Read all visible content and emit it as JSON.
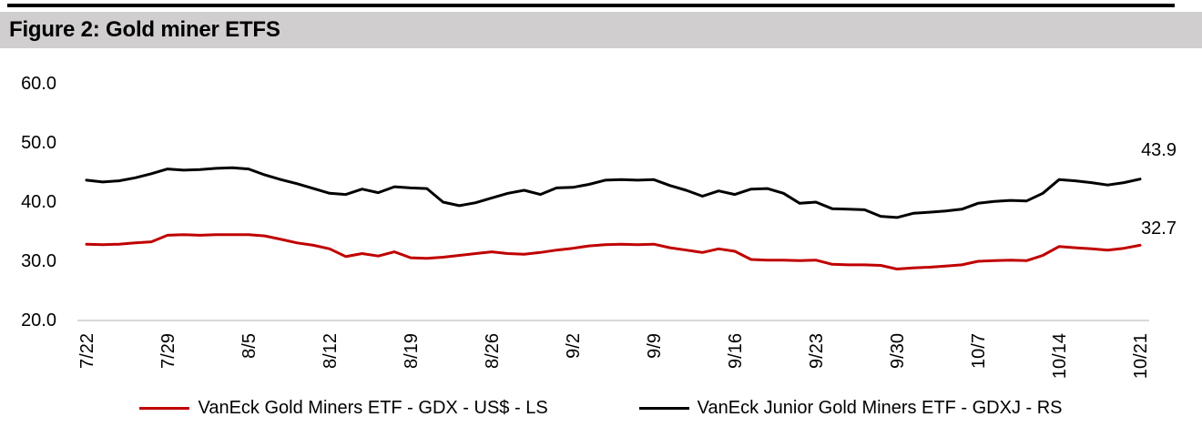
{
  "figure": {
    "title": "Figure 2: Gold miner ETFS"
  },
  "colors": {
    "accent_red": "#c00000",
    "line_black": "#000000",
    "title_bar_bg": "#d0cece",
    "baseline_gray": "#d9d9d9",
    "top_rule_black": "#000000",
    "text": "#000000"
  },
  "chart_data": {
    "type": "line",
    "title": "Figure 2: Gold miner ETFS",
    "xlabel": "",
    "ylabel": "",
    "ylim": [
      20,
      60
    ],
    "y_tick_labels": [
      "60.0",
      "50.0",
      "40.0",
      "30.0",
      "20.0"
    ],
    "y_ticks": [
      60,
      50,
      40,
      30,
      20
    ],
    "x_tick_labels": [
      "7/22",
      "7/29",
      "8/5",
      "8/12",
      "8/19",
      "8/26",
      "9/2",
      "9/9",
      "9/16",
      "9/23",
      "9/30",
      "10/7",
      "10/14",
      "10/21"
    ],
    "points_per_tick": 5,
    "grid": "off (single light-gray baseline at y=20 only)",
    "legend_position": "bottom-center",
    "series": [
      {
        "name": "VanEck Gold Miners ETF  - GDX  - US$ - LS",
        "color": "#c00000",
        "axis": "LS",
        "end_label": "32.7",
        "values": [
          32.9,
          32.8,
          32.9,
          33.1,
          33.3,
          34.4,
          34.5,
          34.4,
          34.5,
          34.5,
          34.5,
          34.3,
          33.7,
          33.1,
          32.7,
          32.1,
          30.8,
          31.3,
          30.9,
          31.6,
          30.6,
          30.5,
          30.7,
          31.0,
          31.3,
          31.6,
          31.3,
          31.2,
          31.5,
          31.9,
          32.2,
          32.6,
          32.8,
          32.9,
          32.8,
          32.9,
          32.3,
          31.9,
          31.5,
          32.1,
          31.7,
          30.3,
          30.2,
          30.2,
          30.1,
          30.2,
          29.5,
          29.4,
          29.4,
          29.3,
          28.7,
          28.9,
          29.0,
          29.2,
          29.4,
          30.0,
          30.1,
          30.2,
          30.1,
          31.0,
          32.5,
          32.3,
          32.1,
          31.9,
          32.2,
          32.7
        ]
      },
      {
        "name": "VanEck Junior Gold Miners ETF - GDXJ - RS",
        "color": "#000000",
        "axis": "RS",
        "end_label": "43.9",
        "values": [
          43.7,
          43.4,
          43.6,
          44.1,
          44.8,
          45.6,
          45.4,
          45.5,
          45.7,
          45.8,
          45.6,
          44.6,
          43.8,
          43.1,
          42.3,
          41.5,
          41.3,
          42.2,
          41.6,
          42.6,
          42.4,
          42.3,
          40.0,
          39.4,
          39.9,
          40.7,
          41.5,
          42.0,
          41.3,
          42.4,
          42.5,
          43.0,
          43.7,
          43.8,
          43.7,
          43.8,
          42.8,
          42.0,
          41.0,
          41.9,
          41.3,
          42.2,
          42.3,
          41.5,
          39.8,
          40.0,
          38.9,
          38.8,
          38.7,
          37.6,
          37.4,
          38.1,
          38.3,
          38.5,
          38.8,
          39.8,
          40.1,
          40.3,
          40.2,
          41.5,
          43.8,
          43.6,
          43.3,
          42.9,
          43.3,
          43.9
        ]
      }
    ]
  }
}
